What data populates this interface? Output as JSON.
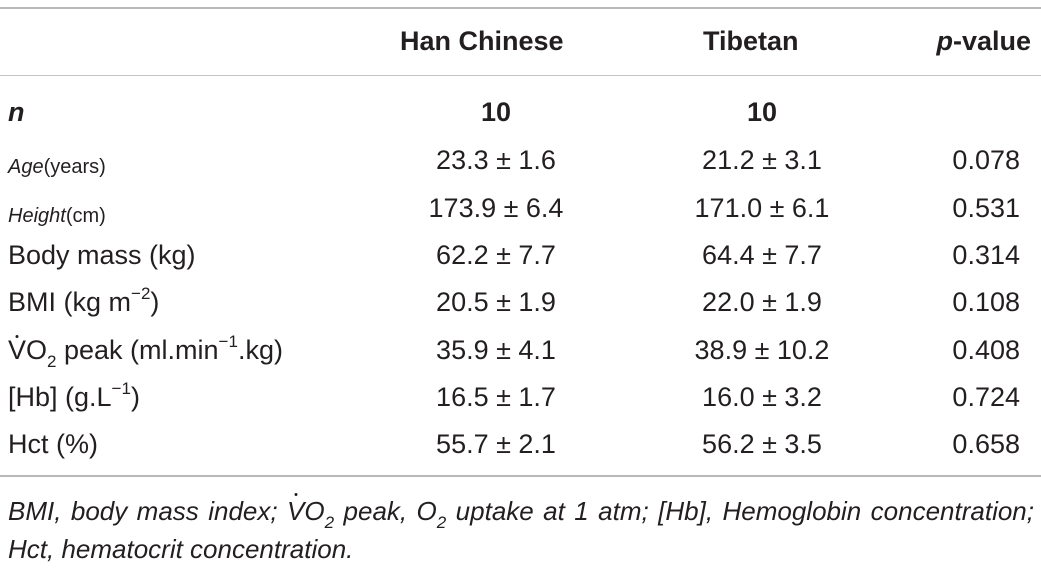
{
  "headers": {
    "col_han": "Han Chinese",
    "col_tibetan": "Tibetan",
    "col_p_italic": "p",
    "col_p_rest": "-value"
  },
  "rows": {
    "n": {
      "label": "n",
      "han": "10",
      "tibetan": "10"
    },
    "age": {
      "label_a": "Age",
      "label_b": "(years)",
      "han": "23.3 ± 1.6",
      "tibetan": "21.2 ± 3.1",
      "p": "0.078"
    },
    "height": {
      "label_a": "Height",
      "label_b": "(cm)",
      "han": "173.9 ± 6.4",
      "tibetan": "171.0 ± 6.1",
      "p": "0.531"
    },
    "body_mass": {
      "label": "Body mass (kg)",
      "han": "62.2 ± 7.7",
      "tibetan": "64.4 ± 7.7",
      "p": "0.314"
    },
    "bmi": {
      "label_a": "BMI (kg m",
      "label_sup": "−2",
      "label_b": ")",
      "han": "20.5 ± 1.9",
      "tibetan": "22.0 ± 1.9",
      "p": "0.108"
    },
    "vo2": {
      "label_v": "V",
      "label_o": "O",
      "label_sub": "2",
      "label_b": " peak (ml.min",
      "label_sup": "−1",
      "label_c": ".kg)",
      "han": "35.9 ± 4.1",
      "tibetan": "38.9 ± 10.2",
      "p": "0.408"
    },
    "hb": {
      "label_a": "[Hb] (g.L",
      "label_sup": "−1",
      "label_b": ")",
      "han": "16.5 ± 1.7",
      "tibetan": "16.0 ± 3.2",
      "p": "0.724"
    },
    "hct": {
      "label": "Hct (%)",
      "han": "55.7 ± 2.1",
      "tibetan": "56.2 ± 3.5",
      "p": "0.658"
    }
  },
  "footnote": {
    "part1": "BMI, body mass index; ",
    "v": "V",
    "o": "O",
    "sub1": "2",
    "part2": " peak, O",
    "sub2": "2",
    "part3": " uptake at 1 atm; [Hb], Hemoglobin concentration; Hct, hematocrit concentration."
  }
}
